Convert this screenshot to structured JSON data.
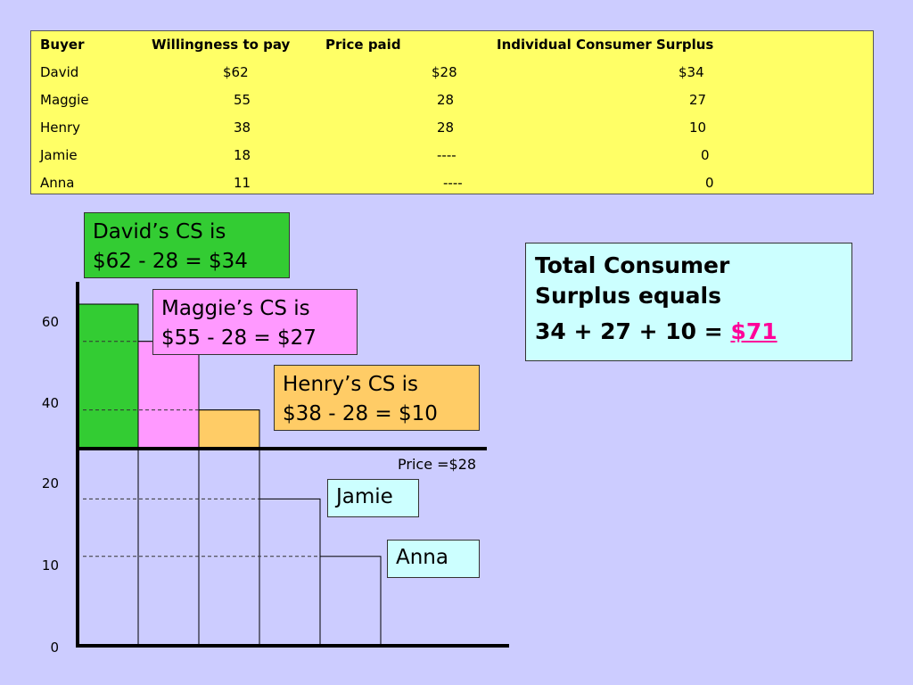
{
  "table": {
    "headers": [
      "Buyer",
      "Willingness to pay",
      "Price paid",
      "Individual Consumer Surplus"
    ],
    "rows": [
      [
        "David",
        "$62",
        "$28",
        "$34"
      ],
      [
        "Maggie",
        "55",
        "28",
        "27"
      ],
      [
        "Henry",
        "38",
        "28",
        "10"
      ],
      [
        "Jamie",
        "18",
        "----",
        "0"
      ],
      [
        "Anna",
        "11",
        "----",
        "0"
      ]
    ]
  },
  "callouts": {
    "david": {
      "line1": "David’s CS is",
      "line2": "$62 - 28 = $34"
    },
    "maggie": {
      "line1": "Maggie’s CS is",
      "line2": "$55 - 28 = $27"
    },
    "henry": {
      "line1": "Henry’s CS is",
      "line2": "$38 - 28 = $10"
    },
    "jamie": "Jamie",
    "anna": "Anna"
  },
  "total": {
    "line1": "Total Consumer",
    "line2": "Surplus equals",
    "equation": "34 + 27 + 10 = ",
    "amount": "$71",
    "amount_color": "#ff0099"
  },
  "price_label": "Price =$28",
  "chart_data": {
    "type": "bar",
    "categories": [
      "David",
      "Maggie",
      "Henry",
      "Jamie",
      "Anna"
    ],
    "values": [
      62,
      55,
      38,
      18,
      11
    ],
    "price": 28,
    "y_ticks": [
      "0",
      "10",
      "20",
      "40",
      "60"
    ],
    "y_tick_values": [
      0,
      10,
      20,
      40,
      60
    ],
    "colors": {
      "surplus": [
        "#33cc33",
        "#ff99ff",
        "#ffcc66"
      ],
      "axis": "#000000"
    }
  }
}
